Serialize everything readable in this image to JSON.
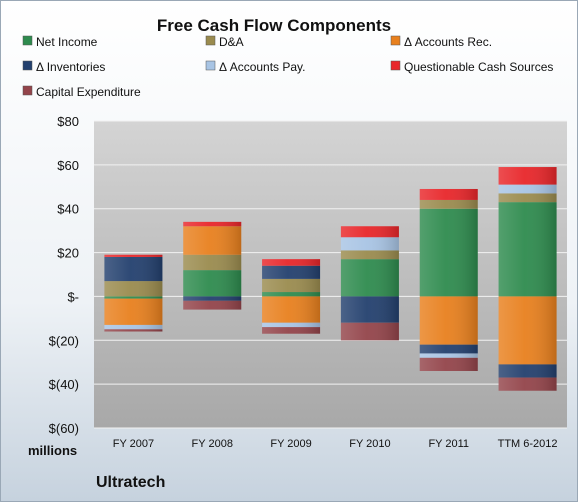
{
  "chart_data": {
    "type": "bar",
    "stacked": true,
    "title": "Free Cash Flow Components",
    "units_label": "millions",
    "company": "Ultratech",
    "categories": [
      "FY 2007",
      "FY 2008",
      "FY 2009",
      "FY 2010",
      "FY 2011",
      "TTM 6-2012"
    ],
    "ylim": [
      -60,
      80
    ],
    "yticks": [
      80,
      60,
      40,
      20,
      0,
      -20,
      -40,
      -60
    ],
    "ytick_labels": [
      "$80",
      "$60",
      "$40",
      "$20",
      "$-",
      "$(20)",
      "$(40)",
      "$(60)"
    ],
    "grid": true,
    "legend_position": "top",
    "series": [
      {
        "name": "Net Income",
        "color": "#2e8b4e",
        "values": [
          -1,
          12,
          2,
          17,
          40,
          43
        ]
      },
      {
        "name": "D&A",
        "color": "#9a8b4e",
        "values": [
          7,
          7,
          6,
          4,
          4,
          4
        ]
      },
      {
        "name": "Δ Accounts Rec.",
        "color": "#e8801e",
        "values": [
          -12,
          13,
          -12,
          0,
          -22,
          -31
        ]
      },
      {
        "name": "Δ Inventories",
        "color": "#23406e",
        "values": [
          11,
          -2,
          6,
          -12,
          -4,
          -6
        ]
      },
      {
        "name": "Δ Accounts Pay.",
        "color": "#a8c4e4",
        "values": [
          -2,
          0,
          -2,
          6,
          -2,
          4
        ]
      },
      {
        "name": "Questionable Cash Sources",
        "color": "#e8262a",
        "values": [
          1,
          2,
          3,
          5,
          5,
          8
        ]
      },
      {
        "name": "Capital Expenditure",
        "color": "#93444a",
        "values": [
          -1,
          -4,
          -3,
          -8,
          -6,
          -6
        ]
      }
    ]
  }
}
